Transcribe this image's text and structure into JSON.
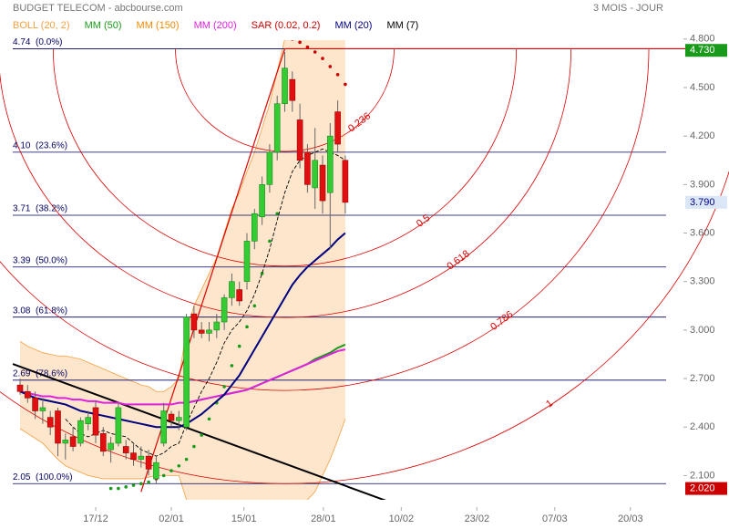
{
  "chart_data": {
    "type": "candlestick",
    "title": "BUDGET TELECOM - abcbourse.com",
    "period": "3 MOIS - JOUR",
    "x": [
      0,
      1,
      2,
      3,
      4,
      5,
      6,
      7,
      8,
      9,
      10,
      11,
      12,
      13,
      14,
      15,
      16,
      17,
      18,
      19,
      20,
      21,
      22,
      23,
      24,
      25,
      26,
      27,
      28,
      29,
      30,
      31,
      32,
      33,
      34,
      35,
      36,
      37,
      38,
      39,
      40,
      41,
      42,
      43
    ],
    "xlim": [
      -2.65,
      85.66
    ],
    "xticks": [
      {
        "value": 10,
        "label": "17/12"
      },
      {
        "value": 20,
        "label": "02/01"
      },
      {
        "value": 29.6,
        "label": "15/01"
      },
      {
        "value": 40.1,
        "label": "28/01"
      },
      {
        "value": 50.4,
        "label": "10/02"
      },
      {
        "value": 60.4,
        "label": "23/02"
      },
      {
        "value": 70.7,
        "label": "07/03"
      },
      {
        "value": 80.7,
        "label": "20/03"
      }
    ],
    "ylim": [
      1.95,
      4.94
    ],
    "yticks": [
      {
        "value": 2.1,
        "label": "2.100"
      },
      {
        "value": 2.4,
        "label": "2.400"
      },
      {
        "value": 2.7,
        "label": "2.700"
      },
      {
        "value": 3.0,
        "label": "3.000"
      },
      {
        "value": 3.3,
        "label": "3.300"
      },
      {
        "value": 3.6,
        "label": "3.600"
      },
      {
        "value": 3.9,
        "label": "3.900"
      },
      {
        "value": 4.2,
        "label": "4.200"
      },
      {
        "value": 4.5,
        "label": "4.500"
      },
      {
        "value": 4.8,
        "label": "4.800"
      }
    ],
    "candles": {
      "up_color": "#33cc33",
      "down_color": "#e01010",
      "open": [
        2.66,
        2.62,
        2.58,
        2.5,
        2.46,
        2.5,
        2.3,
        2.34,
        2.3,
        2.42,
        2.52,
        2.36,
        2.26,
        2.3,
        2.28,
        2.24,
        2.2,
        2.22,
        2.08,
        2.3,
        2.48,
        2.44,
        2.4,
        3.1,
        3.0,
        2.98,
        3.0,
        3.05,
        3.2,
        3.25,
        3.3,
        3.55,
        3.7,
        3.9,
        4.1,
        4.4,
        4.55,
        4.3,
        4.1,
        3.88,
        4.02,
        3.85,
        4.35,
        4.05
      ],
      "high": [
        2.7,
        2.66,
        2.62,
        2.58,
        2.5,
        2.52,
        2.36,
        2.4,
        2.46,
        2.5,
        2.56,
        2.4,
        2.34,
        2.55,
        2.32,
        2.3,
        2.28,
        2.26,
        2.22,
        2.55,
        2.5,
        2.5,
        3.1,
        3.15,
        3.05,
        3.05,
        3.1,
        3.22,
        3.35,
        3.3,
        3.6,
        3.75,
        3.95,
        4.15,
        4.45,
        4.72,
        4.6,
        4.4,
        4.15,
        4.25,
        4.08,
        4.28,
        4.42,
        4.08
      ],
      "low": [
        2.6,
        2.55,
        2.45,
        2.42,
        2.35,
        2.22,
        2.2,
        2.25,
        2.28,
        2.38,
        2.3,
        2.22,
        2.18,
        2.28,
        2.2,
        2.16,
        2.15,
        2.1,
        2.05,
        2.28,
        2.4,
        2.38,
        2.38,
        2.95,
        2.95,
        2.93,
        2.95,
        3.0,
        3.15,
        3.15,
        3.25,
        3.5,
        3.65,
        3.85,
        4.05,
        4.35,
        4.35,
        4.0,
        3.85,
        3.75,
        3.72,
        3.5,
        4.1,
        3.72
      ],
      "close": [
        2.62,
        2.58,
        2.5,
        2.52,
        2.4,
        2.3,
        2.32,
        2.28,
        2.44,
        2.46,
        2.35,
        2.25,
        2.3,
        2.52,
        2.24,
        2.2,
        2.22,
        2.14,
        2.18,
        2.5,
        2.44,
        2.46,
        3.08,
        3.0,
        2.98,
        3.0,
        3.05,
        3.2,
        3.3,
        3.18,
        3.55,
        3.72,
        3.9,
        4.1,
        4.4,
        4.62,
        4.42,
        4.05,
        3.9,
        4.05,
        3.8,
        4.2,
        4.15,
        3.79
      ]
    },
    "series": [
      {
        "name": "BOLL (20, 2)",
        "color": "#f5a040",
        "fill": "#fde6cc",
        "upper": [
          2.93,
          2.9,
          2.88,
          2.86,
          2.85,
          2.84,
          2.84,
          2.83,
          2.82,
          2.8,
          2.78,
          2.76,
          2.74,
          2.72,
          2.7,
          2.68,
          2.66,
          2.65,
          2.62,
          2.62,
          2.65,
          2.7,
          3.0,
          3.15,
          3.25,
          3.35,
          3.45,
          3.6,
          3.75,
          3.85,
          3.98,
          4.1,
          4.25,
          4.4,
          4.6,
          4.8,
          4.9,
          4.95,
          4.95,
          4.93,
          4.9,
          4.88,
          4.87,
          4.85
        ],
        "lower": [
          2.39,
          2.36,
          2.33,
          2.3,
          2.25,
          2.2,
          2.16,
          2.14,
          2.12,
          2.1,
          2.09,
          2.08,
          2.08,
          2.08,
          2.08,
          2.08,
          2.08,
          2.09,
          2.1,
          2.1,
          2.1,
          2.1,
          1.95,
          1.9,
          1.9,
          1.9,
          1.9,
          1.9,
          1.92,
          1.92,
          1.92,
          1.92,
          1.93,
          1.93,
          1.92,
          1.9,
          1.9,
          1.9,
          1.95,
          2.0,
          2.1,
          2.2,
          2.32,
          2.45
        ]
      },
      {
        "name": "MM (50)",
        "color": "#1a9a1a",
        "values": [
          null,
          null,
          null,
          null,
          null,
          null,
          null,
          null,
          null,
          null,
          null,
          null,
          null,
          null,
          null,
          null,
          null,
          null,
          null,
          null,
          null,
          null,
          2.55,
          2.56,
          2.57,
          2.58,
          2.59,
          2.6,
          2.61,
          2.62,
          2.63,
          2.65,
          2.67,
          2.69,
          2.71,
          2.73,
          2.75,
          2.77,
          2.79,
          2.82,
          2.84,
          2.86,
          2.89,
          2.91
        ]
      },
      {
        "name": "MM (150)",
        "color": "#f08c00",
        "values": [
          null,
          null,
          null,
          null,
          null,
          null,
          null,
          null,
          null,
          null,
          null,
          null,
          null,
          null,
          null,
          null,
          null,
          null,
          null,
          null,
          null,
          null,
          null,
          null,
          null,
          null,
          null,
          null,
          null,
          null,
          null,
          null,
          null,
          null,
          null,
          null,
          null,
          null,
          null,
          null,
          null,
          null,
          null,
          null
        ]
      },
      {
        "name": "MM (200)",
        "color": "#e020e0",
        "values": [
          2.62,
          2.61,
          2.6,
          2.59,
          2.59,
          2.58,
          2.58,
          2.57,
          2.57,
          2.56,
          2.56,
          2.55,
          2.55,
          2.55,
          2.54,
          2.54,
          2.54,
          2.54,
          2.54,
          2.54,
          2.54,
          2.55,
          2.55,
          2.56,
          2.57,
          2.58,
          2.59,
          2.6,
          2.61,
          2.62,
          2.63,
          2.65,
          2.67,
          2.69,
          2.71,
          2.73,
          2.75,
          2.77,
          2.79,
          2.81,
          2.83,
          2.85,
          2.87,
          2.88
        ]
      },
      {
        "name": "SAR (0.02, 0.2)",
        "color": "#cc0000",
        "color_below": "#1a9a1a",
        "dots": true,
        "values": [
          null,
          null,
          null,
          null,
          null,
          null,
          null,
          null,
          null,
          null,
          null,
          null,
          2.02,
          2.02,
          2.03,
          2.04,
          2.05,
          2.06,
          2.08,
          2.1,
          2.13,
          2.16,
          2.2,
          2.28,
          2.35,
          2.45,
          2.55,
          2.65,
          2.78,
          2.9,
          3.02,
          3.15,
          3.35,
          3.55,
          3.72,
          4.82,
          4.8,
          4.78,
          4.75,
          4.72,
          4.68,
          4.63,
          4.58,
          4.52
        ]
      },
      {
        "name": "MM (20)",
        "color": "#000080",
        "values": [
          2.62,
          2.6,
          2.58,
          2.57,
          2.56,
          2.55,
          2.54,
          2.52,
          2.5,
          2.49,
          2.48,
          2.47,
          2.46,
          2.45,
          2.44,
          2.43,
          2.42,
          2.41,
          2.4,
          2.4,
          2.4,
          2.4,
          2.42,
          2.45,
          2.48,
          2.52,
          2.56,
          2.6,
          2.66,
          2.72,
          2.8,
          2.88,
          2.96,
          3.04,
          3.12,
          3.2,
          3.28,
          3.34,
          3.39,
          3.43,
          3.47,
          3.51,
          3.56,
          3.6
        ]
      },
      {
        "name": "MM (7)",
        "color": "#000000",
        "dash": true,
        "values": [
          null,
          null,
          null,
          null,
          null,
          null,
          2.45,
          2.4,
          2.36,
          2.34,
          2.36,
          2.38,
          2.36,
          2.35,
          2.34,
          2.3,
          2.26,
          2.24,
          2.22,
          2.24,
          2.28,
          2.3,
          2.42,
          2.52,
          2.62,
          2.7,
          2.8,
          2.92,
          3.0,
          3.05,
          3.12,
          3.22,
          3.35,
          3.5,
          3.68,
          3.85,
          3.98,
          4.05,
          4.08,
          4.1,
          4.12,
          4.1,
          4.08,
          4.05
        ]
      }
    ],
    "fib_levels": [
      {
        "value": 4.74,
        "label": "4.74  (0.0%)"
      },
      {
        "value": 4.1,
        "label": "4.10  (23.6%)"
      },
      {
        "value": 3.71,
        "label": "3.71  (38.2%)"
      },
      {
        "value": 3.39,
        "label": "3.39  (50.0%)"
      },
      {
        "value": 3.08,
        "label": "3.08  (61.8%)"
      },
      {
        "value": 2.69,
        "label": "2.69  (78.6%)"
      },
      {
        "value": 2.05,
        "label": "2.05  (100.0%)"
      }
    ],
    "fib_color": "#000060",
    "fan": {
      "x": 35,
      "color": "#dd0000",
      "ratios": [
        0.236,
        0.5,
        0.618,
        0.786,
        1
      ]
    },
    "trendlines": [
      {
        "color": "#dd0000",
        "x": [
          16,
          35
        ],
        "y": [
          2.0,
          4.74
        ]
      },
      {
        "color": "#dd0000",
        "x": [
          35,
          88
        ],
        "y": [
          4.74,
          4.74
        ]
      },
      {
        "color": "#000000",
        "x": [
          -0.96,
          50.4
        ],
        "y": [
          2.79,
          1.91
        ]
      }
    ],
    "price_tags": [
      {
        "value": 4.73,
        "label": "4.730",
        "color": "#1a9a1a",
        "text_color": "#ffffff"
      },
      {
        "value": 3.79,
        "label": "3.790",
        "color": "#dbe7f7",
        "text_color": "#000080"
      },
      {
        "value": 2.02,
        "label": "2.020",
        "color": "#cc0000",
        "text_color": "#ffffff"
      }
    ]
  }
}
